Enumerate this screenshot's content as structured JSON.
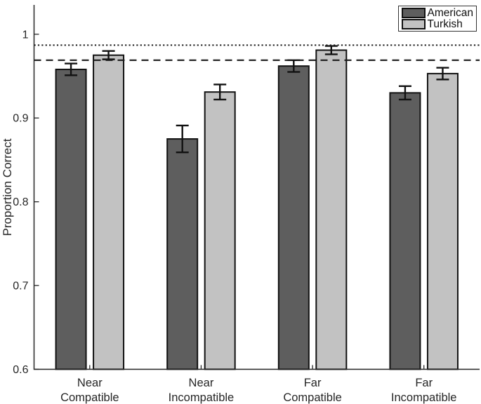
{
  "figure": {
    "background": "#ffffff",
    "axis_color": "#262626"
  },
  "legend": {
    "position": "top-right",
    "items": [
      {
        "label": "American",
        "color": "#5e5e5e"
      },
      {
        "label": "Turkish",
        "color": "#c2c2c2"
      }
    ]
  },
  "chart_data": {
    "type": "bar",
    "title": "",
    "xlabel": "",
    "ylabel": "Proportion Correct",
    "categories": [
      [
        "Near",
        "Compatible"
      ],
      [
        "Near",
        "Incompatible"
      ],
      [
        "Far",
        "Compatible"
      ],
      [
        "Far",
        "Incompatible"
      ]
    ],
    "series": [
      {
        "name": "American",
        "color": "#5e5e5e",
        "values": [
          0.958,
          0.875,
          0.962,
          0.93
        ],
        "errors": [
          0.007,
          0.016,
          0.007,
          0.008
        ]
      },
      {
        "name": "Turkish",
        "color": "#c2c2c2",
        "values": [
          0.975,
          0.931,
          0.981,
          0.953
        ],
        "errors": [
          0.005,
          0.009,
          0.005,
          0.007
        ]
      }
    ],
    "ylim": [
      0.6,
      1.035
    ],
    "yticks": [
      0.6,
      0.7,
      0.8,
      0.9,
      1
    ],
    "ytick_labels": [
      "0.6",
      "0.7",
      "0.8",
      "0.9",
      "1"
    ],
    "reference_lines": [
      {
        "style": "dotted",
        "value": 0.987,
        "color": "#1a1a1a"
      },
      {
        "style": "dashed",
        "value": 0.969,
        "color": "#1a1a1a"
      }
    ],
    "grid": false,
    "legend_position": "top-right",
    "bar_edge_color": "#111111",
    "error_bar_color": "#111111"
  }
}
